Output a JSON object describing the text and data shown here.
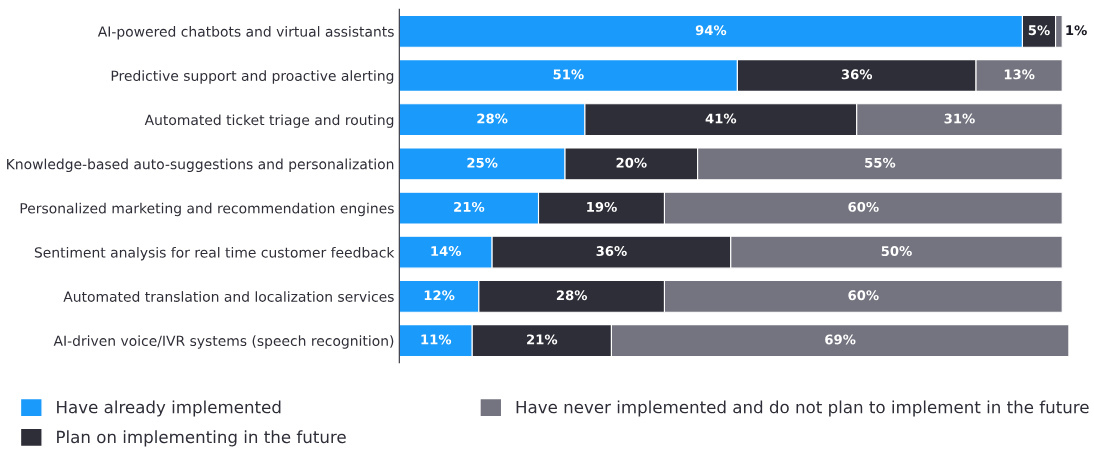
{
  "chart_data": {
    "type": "bar",
    "orientation": "horizontal",
    "stacked": true,
    "legend": "bottom",
    "grid": false,
    "tick_labels": "y",
    "categories": [
      "AI-powered chatbots and virtual assistants",
      "Predictive support and proactive alerting",
      "Automated ticket triage and routing",
      "Knowledge-based auto-suggestions and personalization",
      "Personalized marketing and recommendation engines",
      "Sentiment analysis for real time customer feedback",
      "Automated translation and localization services",
      "AI-driven voice/IVR systems (speech recognition)"
    ],
    "series": [
      {
        "name": "Have already implemented",
        "color": "#1a9afa",
        "values": [
          94,
          51,
          28,
          25,
          21,
          14,
          12,
          11
        ],
        "value_labels": [
          "94%",
          "51%",
          "28%",
          "25%",
          "21%",
          "14%",
          "12%",
          "11%"
        ]
      },
      {
        "name": "Plan on implementing in the future",
        "color": "#2e2e38",
        "values": [
          5,
          36,
          41,
          20,
          19,
          36,
          28,
          21
        ],
        "value_labels": [
          "5%",
          "36%",
          "41%",
          "20%",
          "19%",
          "36%",
          "28%",
          "21%"
        ]
      },
      {
        "name": "Have never implemented and do not plan to implement in the future",
        "color": "#747480",
        "values": [
          1,
          13,
          31,
          55,
          60,
          50,
          60,
          69
        ],
        "value_labels": [
          "1%",
          "13%",
          "31%",
          "55%",
          "60%",
          "50%",
          "60%",
          "69%"
        ]
      }
    ]
  }
}
